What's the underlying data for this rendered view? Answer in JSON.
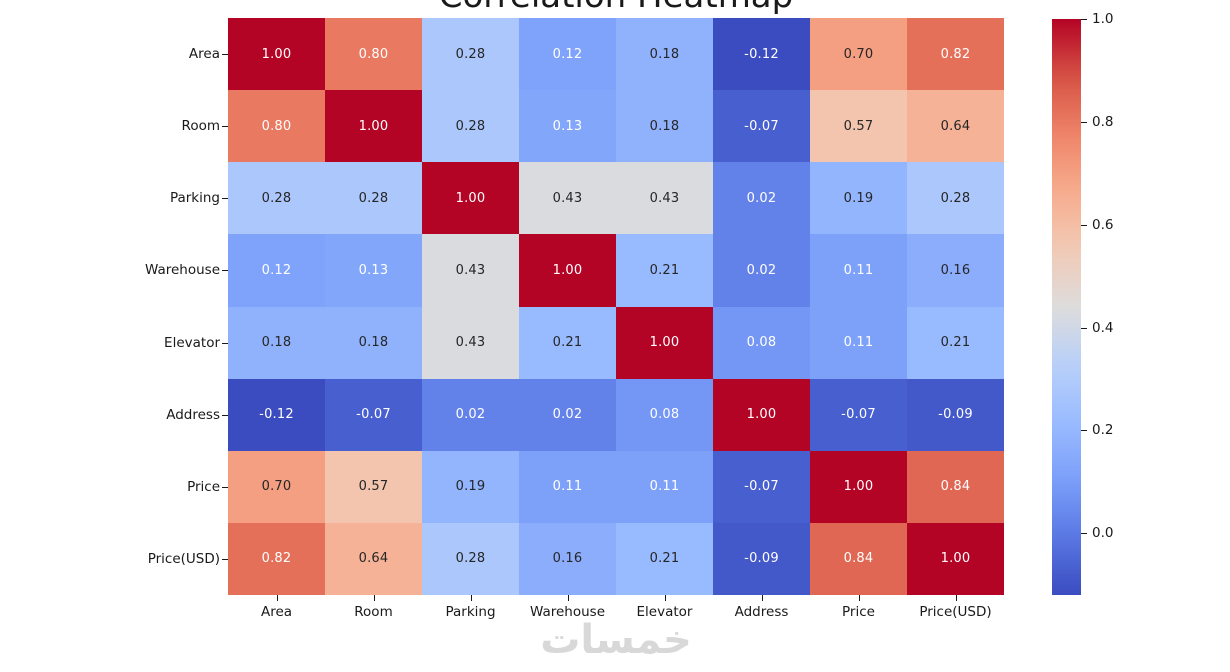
{
  "watermark": "خمسات",
  "chart_data": {
    "type": "heatmap",
    "title": "Correlation Heatmap",
    "categories": [
      "Area",
      "Room",
      "Parking",
      "Warehouse",
      "Elevator",
      "Address",
      "Price",
      "Price(USD)"
    ],
    "matrix": [
      [
        1.0,
        0.8,
        0.28,
        0.12,
        0.18,
        -0.12,
        0.7,
        0.82
      ],
      [
        0.8,
        1.0,
        0.28,
        0.13,
        0.18,
        -0.07,
        0.57,
        0.64
      ],
      [
        0.28,
        0.28,
        1.0,
        0.43,
        0.43,
        0.02,
        0.19,
        0.28
      ],
      [
        0.12,
        0.13,
        0.43,
        1.0,
        0.21,
        0.02,
        0.11,
        0.16
      ],
      [
        0.18,
        0.18,
        0.43,
        0.21,
        1.0,
        0.08,
        0.11,
        0.21
      ],
      [
        -0.12,
        -0.07,
        0.02,
        0.02,
        0.08,
        1.0,
        -0.07,
        -0.09
      ],
      [
        0.7,
        0.57,
        0.19,
        0.11,
        0.11,
        -0.07,
        1.0,
        0.84
      ],
      [
        0.82,
        0.64,
        0.28,
        0.16,
        0.21,
        -0.09,
        0.84,
        1.0
      ]
    ],
    "value_format_decimals": 2,
    "vmin": -0.12,
    "vmax": 1.0,
    "colormap": "coolwarm",
    "colormap_anchors": [
      "#3b4cc0",
      "#5977e3",
      "#7b9ff9",
      "#9abbff",
      "#b8d0f9",
      "#dddcdc",
      "#f2cab5",
      "#f7ac8e",
      "#ee8468",
      "#d65244",
      "#b40426"
    ],
    "annotation_text_dark": "#262626",
    "annotation_text_light": "#ffffff",
    "colorbar": {
      "ticks": [
        1.0,
        0.8,
        0.6,
        0.4,
        0.2,
        0.0
      ],
      "position": "right"
    },
    "grid": false,
    "legend": false
  }
}
